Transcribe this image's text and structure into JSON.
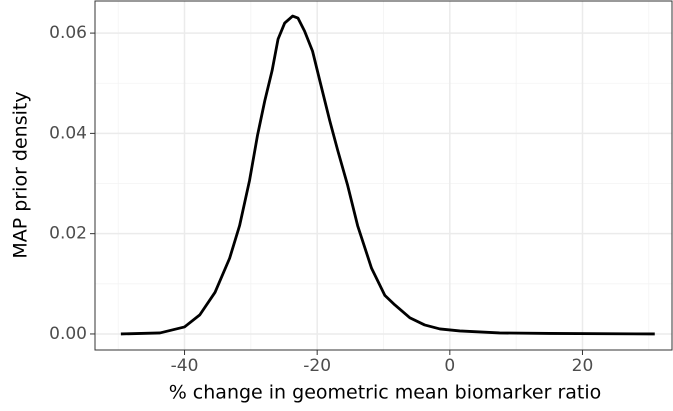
{
  "chart_data": {
    "type": "line",
    "xlabel": "% change in geometric mean biomarker ratio",
    "ylabel": "MAP prior density",
    "x": [
      -49.6,
      -43.7,
      -40,
      -37.7,
      -35.4,
      -33.2,
      -31.7,
      -30.2,
      -29,
      -27.9,
      -26.8,
      -25.9,
      -24.9,
      -23.7,
      -22.9,
      -21.9,
      -20.7,
      -19.6,
      -18.1,
      -16.9,
      -15.4,
      -13.9,
      -11.8,
      -9.8,
      -8.3,
      -6,
      -3.8,
      -1.5,
      1.5,
      7.5,
      15,
      30.9
    ],
    "values": [
      0,
      0.0002,
      0.0014,
      0.0038,
      0.0083,
      0.0151,
      0.0216,
      0.0306,
      0.0396,
      0.0465,
      0.0525,
      0.0588,
      0.062,
      0.0634,
      0.063,
      0.0604,
      0.0564,
      0.0505,
      0.0425,
      0.0366,
      0.0296,
      0.0216,
      0.0131,
      0.0077,
      0.0058,
      0.0032,
      0.0018,
      0.001,
      0.0006,
      0.0002,
      0.0001,
      0
    ],
    "color": "#000000",
    "xlim": [
      -53.5,
      33.5
    ],
    "ylim": [
      -0.0032,
      0.0664
    ],
    "xticks": [
      -40,
      -20,
      0,
      20
    ],
    "yticks": [
      {
        "value": 0,
        "label": "0.00"
      },
      {
        "value": 0.02,
        "label": "0.02"
      },
      {
        "value": 0.04,
        "label": "0.04"
      },
      {
        "value": 0.06,
        "label": "0.06"
      }
    ],
    "xminor": [
      -50,
      -30,
      -10,
      10,
      30
    ],
    "yminor": [
      0.01,
      0.03,
      0.05
    ],
    "grid": true
  }
}
